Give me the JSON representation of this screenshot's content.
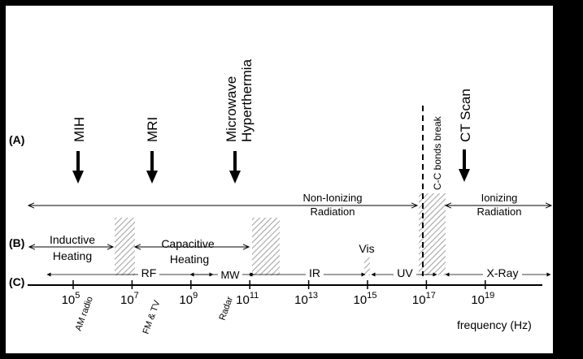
{
  "row_labels": {
    "a": "(A)",
    "b": "(B)",
    "c": "(C)"
  },
  "applications": {
    "mih": "MIH",
    "mri": "MRI",
    "mw_hyperthermia_1": "Microwave",
    "mw_hyperthermia_2": "Hyperthermia",
    "ct_scan": "CT Scan"
  },
  "cc_bonds": "C-C bonds break",
  "radiation": {
    "non_ionizing_1": "Non-Ionizing",
    "non_ionizing_2": "Radiation",
    "ionizing_1": "Ionizing",
    "ionizing_2": "Radiation"
  },
  "heating": {
    "inductive_1": "Inductive",
    "inductive_2": "Heating",
    "capacitive_1": "Capacitive",
    "capacitive_2": "Heating"
  },
  "bands": {
    "rf": "RF",
    "mw": "MW",
    "ir": "IR",
    "vis": "Vis",
    "uv": "UV",
    "xray": "X-Ray"
  },
  "ticks": [
    {
      "base": "10",
      "exp": "5"
    },
    {
      "base": "10",
      "exp": "7"
    },
    {
      "base": "10",
      "exp": "9"
    },
    {
      "base": "10",
      "exp": "11"
    },
    {
      "base": "10",
      "exp": "13"
    },
    {
      "base": "10",
      "exp": "15"
    },
    {
      "base": "10",
      "exp": "17"
    },
    {
      "base": "10",
      "exp": "19"
    }
  ],
  "sources": {
    "am_radio": "AM radio",
    "fm_tv": "FM & TV",
    "radar": "Radar"
  },
  "axis_label": "frequency (Hz)",
  "colors": {
    "frame": "#000000",
    "panel": "#ffffff",
    "hatch": "#a6a6a6"
  }
}
